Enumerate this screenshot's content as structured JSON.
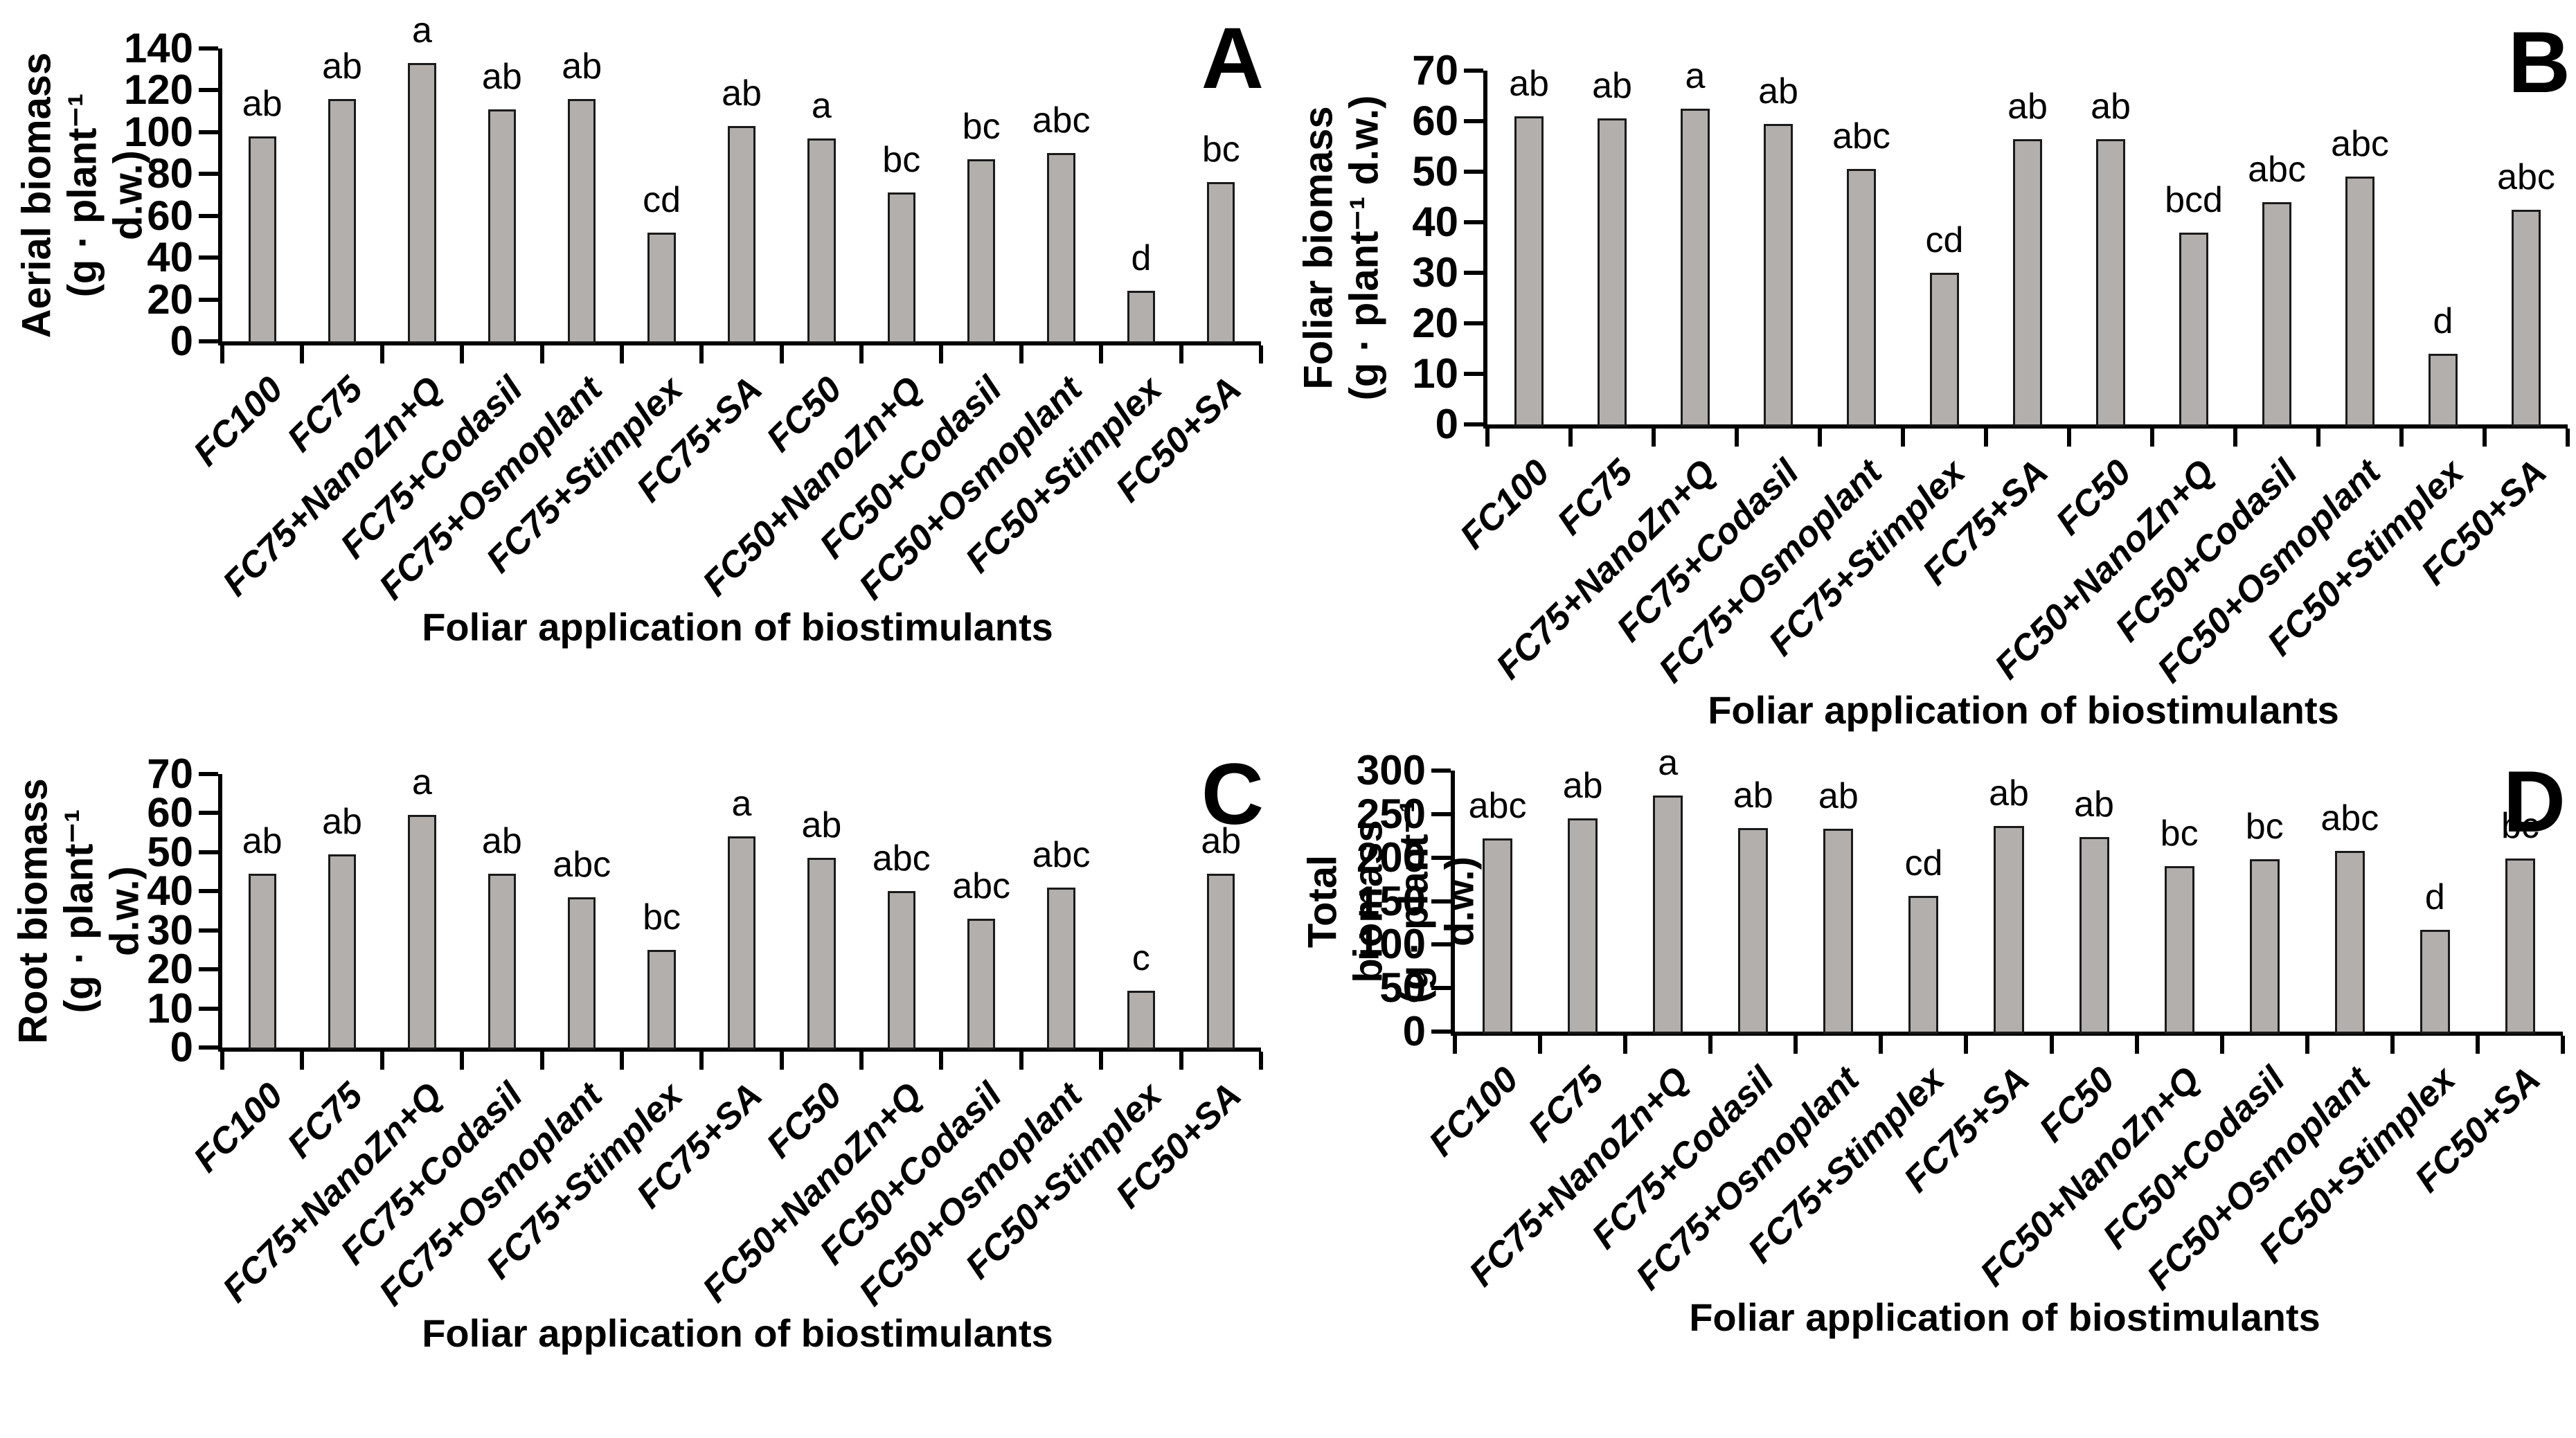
{
  "figure": {
    "background": "#ffffff",
    "colors": {
      "bar_fill": "#b3afac",
      "bar_border": "#1a1a1a",
      "axis": "#000000",
      "text": "#000000"
    }
  },
  "chart_data": [
    {
      "type": "bar",
      "panel_label": "A",
      "ylabel_line1": "Aerial biomass",
      "ylabel_line2": "(g · plant⁻¹ d.w.)",
      "xlabel": "Foliar application of biostimulants",
      "categories": [
        "FC100",
        "FC75",
        "FC75+NanoZn+Q",
        "FC75+Codasil",
        "FC75+Osmoplant",
        "FC75+Stimplex",
        "FC75+SA",
        "FC50",
        "FC50+NanoZn+Q",
        "FC50+Codasil",
        "FC50+Osmoplant",
        "FC50+Stimplex",
        "FC50+SA"
      ],
      "values": [
        98,
        116,
        133,
        111,
        116,
        52,
        103,
        97,
        71,
        87,
        90,
        24,
        76
      ],
      "sig_letters": [
        "ab",
        "ab",
        "a",
        "ab",
        "ab",
        "cd",
        "ab",
        "a",
        "bc",
        "bc",
        "abc",
        "d",
        "bc"
      ],
      "ylim": [
        0,
        140
      ],
      "ytick_step": 20,
      "grid": "off",
      "legend": "none"
    },
    {
      "type": "bar",
      "panel_label": "B",
      "ylabel_line1": "Foliar biomass",
      "ylabel_line2": "(g · plant⁻¹ d.w.)",
      "xlabel": "Foliar application of biostimulants",
      "categories": [
        "FC100",
        "FC75",
        "FC75+NanoZn+Q",
        "FC75+Codasil",
        "FC75+Osmoplant",
        "FC75+Stimplex",
        "FC75+SA",
        "FC50",
        "FC50+NanoZn+Q",
        "FC50+Codasil",
        "FC50+Osmoplant",
        "FC50+Stimplex",
        "FC50+SA"
      ],
      "values": [
        61,
        60.5,
        62.5,
        59.5,
        50.5,
        30,
        56.5,
        56.5,
        38,
        44,
        49,
        14,
        42.5
      ],
      "sig_letters": [
        "ab",
        "ab",
        "a",
        "ab",
        "abc",
        "cd",
        "ab",
        "ab",
        "bcd",
        "abc",
        "abc",
        "d",
        "abc"
      ],
      "ylim": [
        0,
        70
      ],
      "ytick_step": 10,
      "grid": "off",
      "legend": "none"
    },
    {
      "type": "bar",
      "panel_label": "C",
      "ylabel_line1": "Root biomass",
      "ylabel_line2": "(g · plant⁻¹ d.w.)",
      "xlabel": "Foliar application of biostimulants",
      "categories": [
        "FC100",
        "FC75",
        "FC75+NanoZn+Q",
        "FC75+Codasil",
        "FC75+Osmoplant",
        "FC75+Stimplex",
        "FC75+SA",
        "FC50",
        "FC50+NanoZn+Q",
        "FC50+Codasil",
        "FC50+Osmoplant",
        "FC50+Stimplex",
        "FC50+SA"
      ],
      "values": [
        44.5,
        49.5,
        59.5,
        44.5,
        38.5,
        25,
        54,
        48.5,
        40,
        33,
        41,
        14.5,
        44.5
      ],
      "sig_letters": [
        "ab",
        "ab",
        "a",
        "ab",
        "abc",
        "bc",
        "a",
        "ab",
        "abc",
        "abc",
        "abc",
        "c",
        "ab"
      ],
      "ylim": [
        0,
        70
      ],
      "ytick_step": 10,
      "grid": "off",
      "legend": "none"
    },
    {
      "type": "bar",
      "panel_label": "D",
      "ylabel_line1": "Total biomass",
      "ylabel_line2": "(g · plant⁻¹ d.w.)",
      "xlabel": "Foliar application of biostimulants",
      "categories": [
        "FC100",
        "FC75",
        "FC75+NanoZn+Q",
        "FC75+Codasil",
        "FC75+Osmoplant",
        "FC75+Stimplex",
        "FC75+SA",
        "FC50",
        "FC50+NanoZn+Q",
        "FC50+Codasil",
        "FC50+Osmoplant",
        "FC50+Stimplex",
        "FC50+SA"
      ],
      "values": [
        222,
        245,
        271,
        234,
        233,
        156,
        236,
        224,
        190,
        198,
        208,
        117,
        199
      ],
      "sig_letters": [
        "abc",
        "ab",
        "a",
        "ab",
        "ab",
        "cd",
        "ab",
        "ab",
        "bc",
        "bc",
        "abc",
        "d",
        "bc"
      ],
      "ylim": [
        0,
        300
      ],
      "ytick_step": 50,
      "grid": "off",
      "legend": "none"
    }
  ]
}
